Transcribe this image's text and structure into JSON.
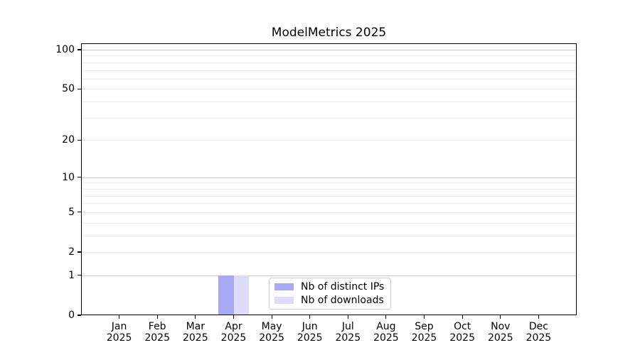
{
  "chart_data": {
    "type": "bar",
    "title": "ModelMetrics 2025",
    "categories": [
      "Jan",
      "Feb",
      "Mar",
      "Apr",
      "May",
      "Jun",
      "Jul",
      "Aug",
      "Sep",
      "Oct",
      "Nov",
      "Dec"
    ],
    "x_year_label": "2025",
    "series": [
      {
        "name": "Nb of distinct IPs",
        "color": "#a8a8f3",
        "values": [
          0,
          0,
          0,
          1,
          0,
          0,
          0,
          0,
          0,
          0,
          0,
          0
        ]
      },
      {
        "name": "Nb of downloads",
        "color": "#dcdcf9",
        "values": [
          0,
          0,
          0,
          1,
          0,
          0,
          0,
          0,
          0,
          0,
          0,
          0
        ]
      }
    ],
    "xlabel": "",
    "ylabel": "",
    "y_axis": {
      "scale": "log1p",
      "tick_labels": [
        0,
        1,
        2,
        5,
        10,
        20,
        50,
        100
      ],
      "major_grid": [
        1,
        10,
        100
      ],
      "minor_grid": [
        2,
        3,
        4,
        5,
        6,
        7,
        8,
        9,
        20,
        30,
        40,
        50,
        60,
        70,
        80,
        90
      ],
      "ylim": [
        0,
        112
      ]
    },
    "grid": true,
    "legend": {
      "position": "lower-center"
    }
  },
  "colors": {
    "major_grid": "#c8c8c8",
    "minor_grid": "#ebebeb",
    "axis": "#000000",
    "legend_border": "#cccccc",
    "background": "#ffffff"
  }
}
